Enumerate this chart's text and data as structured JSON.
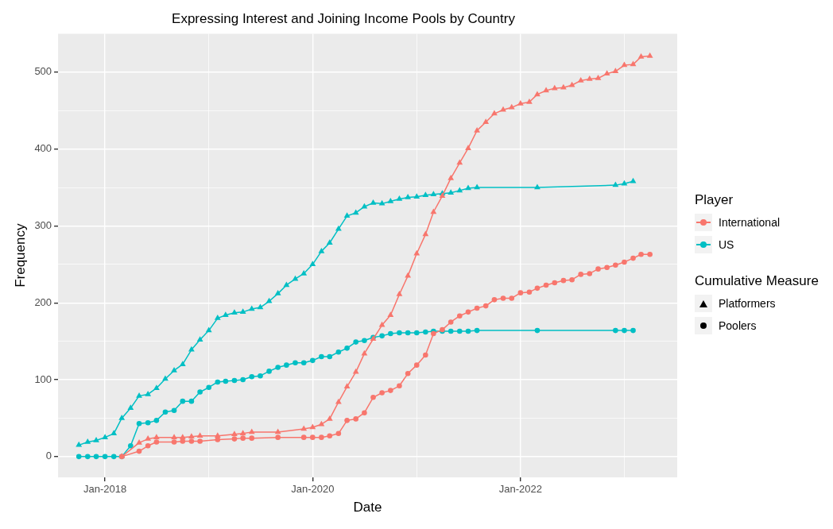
{
  "chart_data": {
    "type": "line",
    "title": "Expressing Interest and Joining Income Pools by Country",
    "xlabel": "Date",
    "ylabel": "Frequency",
    "legend": "right",
    "legend_title": "Player",
    "annotations": [
      "Cumulative Measure",
      "Platformers",
      "Poolers"
    ],
    "grid": true,
    "xlim": [
      "2017-07-20",
      "2023-07-06"
    ],
    "xticks": [
      {
        "value": "2018-01-01",
        "label": "Jan-2018"
      },
      {
        "value": "2019-01-01",
        "label": null
      },
      {
        "value": "2020-01-01",
        "label": "Jan-2020"
      },
      {
        "value": "2021-01-01",
        "label": null
      },
      {
        "value": "2022-01-01",
        "label": "Jan-2022"
      },
      {
        "value": "2023-01-01",
        "label": null
      }
    ],
    "ylim": [
      -27,
      550
    ],
    "yticks": [
      0,
      {
        "value": 50,
        "label": null
      },
      100,
      {
        "value": 150,
        "label": null
      },
      200,
      {
        "value": 250,
        "label": null
      },
      300,
      {
        "value": 350,
        "label": null
      },
      400,
      {
        "value": 450,
        "label": null
      },
      500
    ],
    "series": [
      {
        "marker": "triangle",
        "color": "#f8766d",
        "x": [
          "2018-03",
          "2018-05",
          "2018-06",
          "2018-07",
          "2018-09",
          "2018-10",
          "2018-11",
          "2018-12",
          "2019-02",
          "2019-04",
          "2019-05",
          "2019-06",
          "2019-09",
          "2019-12",
          "2020-01",
          "2020-02",
          "2020-03",
          "2020-04",
          "2020-05",
          "2020-06",
          "2020-07",
          "2020-08",
          "2020-09",
          "2020-10",
          "2020-11",
          "2020-12",
          "2021-01",
          "2021-02",
          "2021-03",
          "2021-04",
          "2021-05",
          "2021-06",
          "2021-07",
          "2021-08",
          "2021-09",
          "2021-10",
          "2021-11",
          "2021-12",
          "2022-01",
          "2022-02",
          "2022-03",
          "2022-04",
          "2022-05",
          "2022-06",
          "2022-07",
          "2022-08",
          "2022-09",
          "2022-10",
          "2022-11",
          "2022-12",
          "2023-01",
          "2023-02",
          "2023-03",
          "2023-04"
        ],
        "values": [
          0,
          18,
          23,
          25,
          25,
          25,
          26,
          27,
          27,
          29,
          30,
          32,
          32,
          36,
          38,
          42,
          49,
          71,
          91,
          110,
          134,
          153,
          171,
          184,
          211,
          235,
          264,
          289,
          318,
          339,
          362,
          382,
          401,
          424,
          435,
          446,
          451,
          454,
          459,
          461,
          471,
          476,
          479,
          480,
          483,
          489,
          491,
          492,
          498,
          501,
          509,
          510,
          520,
          521
        ]
      },
      {
        "name": "International",
        "marker": "circle",
        "color": "#f8766d",
        "x": [
          "2018-03",
          "2018-05",
          "2018-06",
          "2018-07",
          "2018-09",
          "2018-10",
          "2018-11",
          "2018-12",
          "2019-02",
          "2019-04",
          "2019-05",
          "2019-06",
          "2019-09",
          "2019-12",
          "2020-01",
          "2020-02",
          "2020-03",
          "2020-04",
          "2020-05",
          "2020-06",
          "2020-07",
          "2020-08",
          "2020-09",
          "2020-10",
          "2020-11",
          "2020-12",
          "2021-01",
          "2021-02",
          "2021-03",
          "2021-04",
          "2021-05",
          "2021-06",
          "2021-07",
          "2021-08",
          "2021-09",
          "2021-10",
          "2021-11",
          "2021-12",
          "2022-01",
          "2022-02",
          "2022-03",
          "2022-04",
          "2022-05",
          "2022-06",
          "2022-07",
          "2022-08",
          "2022-09",
          "2022-10",
          "2022-11",
          "2022-12",
          "2023-01",
          "2023-02",
          "2023-03",
          "2023-04"
        ],
        "values": [
          0,
          7,
          14,
          19,
          19,
          20,
          20,
          20,
          22,
          23,
          24,
          24,
          25,
          25,
          25,
          25,
          27,
          30,
          47,
          49,
          57,
          77,
          83,
          86,
          92,
          108,
          119,
          132,
          160,
          165,
          175,
          183,
          188,
          193,
          196,
          204,
          206,
          206,
          213,
          214,
          219,
          223,
          226,
          229,
          230,
          237,
          238,
          244,
          246,
          249,
          253,
          258,
          263,
          263
        ]
      },
      {
        "marker": "triangle",
        "color": "#00bfc4",
        "x": [
          "2017-10",
          "2017-11",
          "2017-12",
          "2018-01",
          "2018-02",
          "2018-03",
          "2018-04",
          "2018-05",
          "2018-06",
          "2018-07",
          "2018-08",
          "2018-09",
          "2018-10",
          "2018-11",
          "2018-12",
          "2019-01",
          "2019-02",
          "2019-03",
          "2019-04",
          "2019-05",
          "2019-06",
          "2019-07",
          "2019-08",
          "2019-09",
          "2019-10",
          "2019-11",
          "2019-12",
          "2020-01",
          "2020-02",
          "2020-03",
          "2020-04",
          "2020-05",
          "2020-06",
          "2020-07",
          "2020-08",
          "2020-09",
          "2020-10",
          "2020-11",
          "2020-12",
          "2021-01",
          "2021-02",
          "2021-03",
          "2021-04",
          "2021-05",
          "2021-06",
          "2021-07",
          "2021-08",
          "2022-03",
          "2022-12",
          "2023-01",
          "2023-02"
        ],
        "values": [
          15,
          19,
          21,
          25,
          30,
          50,
          63,
          79,
          81,
          89,
          101,
          112,
          120,
          139,
          152,
          164,
          180,
          184,
          187,
          188,
          192,
          194,
          202,
          212,
          223,
          231,
          238,
          250,
          267,
          278,
          296,
          313,
          317,
          325,
          330,
          329,
          332,
          335,
          337,
          338,
          340,
          341,
          342,
          343,
          346,
          349,
          350,
          350,
          353,
          355,
          358
        ]
      },
      {
        "name": "US",
        "marker": "circle",
        "color": "#00bfc4",
        "x": [
          "2017-10",
          "2017-11",
          "2017-12",
          "2018-01",
          "2018-02",
          "2018-03",
          "2018-04",
          "2018-05",
          "2018-06",
          "2018-07",
          "2018-08",
          "2018-09",
          "2018-10",
          "2018-11",
          "2018-12",
          "2019-01",
          "2019-02",
          "2019-03",
          "2019-04",
          "2019-05",
          "2019-06",
          "2019-07",
          "2019-08",
          "2019-09",
          "2019-10",
          "2019-11",
          "2019-12",
          "2020-01",
          "2020-02",
          "2020-03",
          "2020-04",
          "2020-05",
          "2020-06",
          "2020-07",
          "2020-08",
          "2020-09",
          "2020-10",
          "2020-11",
          "2020-12",
          "2021-01",
          "2021-02",
          "2021-03",
          "2021-04",
          "2021-05",
          "2021-06",
          "2021-07",
          "2021-08",
          "2022-03",
          "2022-12",
          "2023-01",
          "2023-02"
        ],
        "values": [
          0,
          0,
          0,
          0,
          0,
          0,
          14,
          43,
          44,
          47,
          58,
          60,
          72,
          72,
          84,
          90,
          97,
          98,
          99,
          100,
          104,
          105,
          111,
          116,
          119,
          122,
          122,
          125,
          130,
          130,
          136,
          141,
          149,
          151,
          155,
          157,
          160,
          161,
          161,
          161,
          162,
          163,
          163,
          163,
          163,
          163,
          164,
          164,
          164,
          164,
          164
        ]
      }
    ]
  }
}
